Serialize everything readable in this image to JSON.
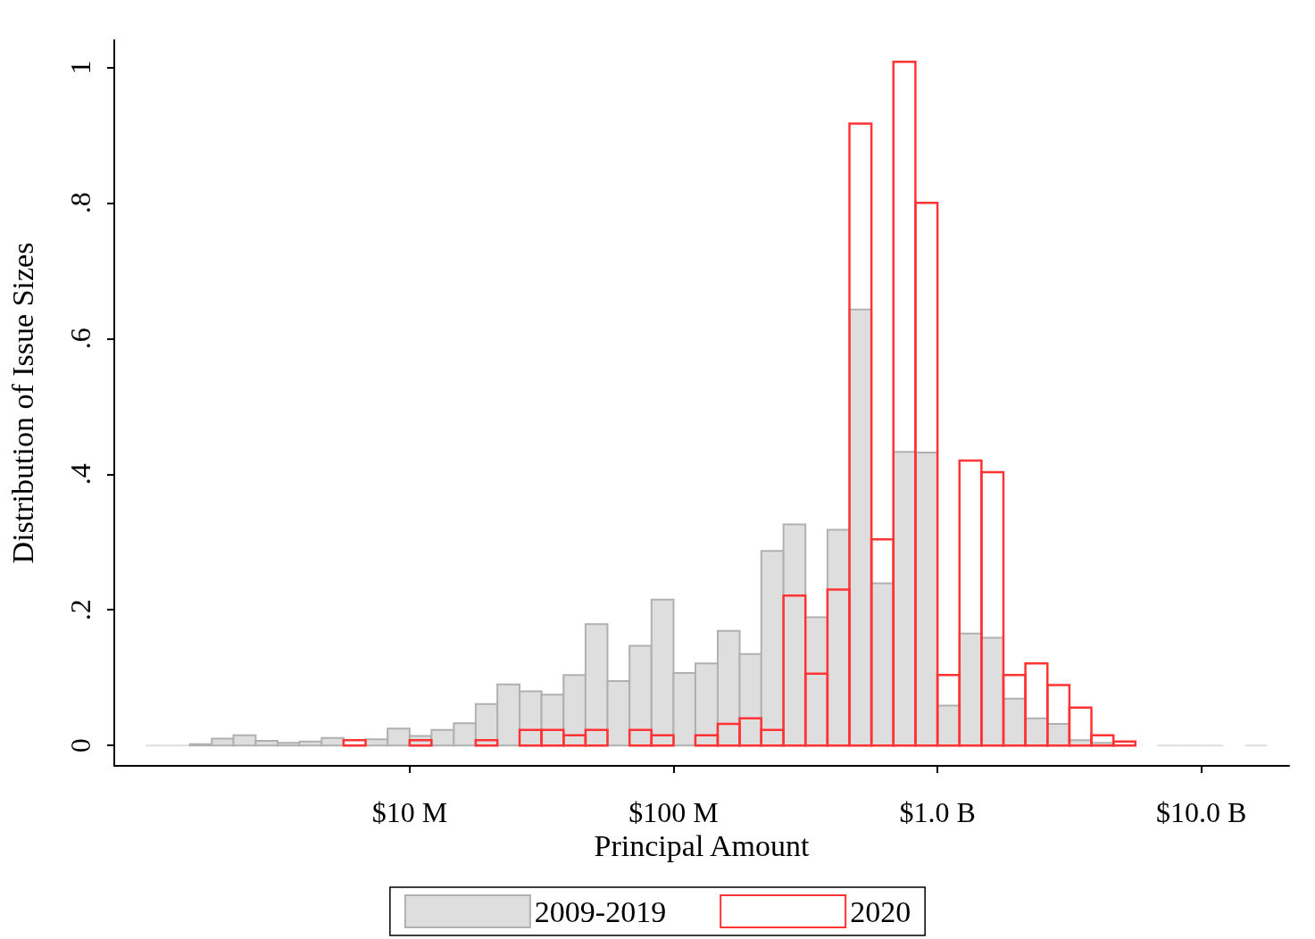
{
  "chart_data": {
    "type": "histogram",
    "xlabel": "Principal Amount",
    "ylabel": "Distribution of Issue Sizes",
    "log": "x",
    "bins": [
      1000000,
      1210000,
      1470000,
      1780000,
      2150000,
      2610000,
      3160000,
      3830000,
      4640000,
      5620000,
      6810000,
      8250000,
      10000000,
      12100000,
      14700000,
      17800000,
      21500000,
      26100000,
      31600000,
      38300000,
      46400000,
      56200000,
      68100000,
      82500000,
      100000000,
      121000000,
      147000000,
      178000000,
      215000000,
      261000000,
      316000000,
      383000000,
      464000000,
      562000000,
      681000000,
      825000000,
      1000000000,
      1212000000,
      1468000000,
      1778000000,
      2154000000,
      2610000000,
      3162000000,
      3831000000,
      4642000000,
      5623000000,
      6813000000,
      8254000000,
      10000000000,
      12115000000,
      14678000000,
      17783000000
    ],
    "xlim": [
      760000,
      21500000000
    ],
    "xticks": [
      {
        "value": 10000000,
        "label": "$10 M"
      },
      {
        "value": 100000000,
        "label": "$100 M"
      },
      {
        "value": 1000000000,
        "label": "$1.0 B"
      },
      {
        "value": 10000000000,
        "label": "$10.0 B"
      }
    ],
    "ylim": [
      -0.03,
      1.04
    ],
    "yticks": [
      {
        "value": 0,
        "label": "0"
      },
      {
        "value": 0.2,
        "label": ".2"
      },
      {
        "value": 0.4,
        "label": ".4"
      },
      {
        "value": 0.6,
        "label": ".6"
      },
      {
        "value": 0.8,
        "label": ".8"
      },
      {
        "value": 1,
        "label": "1"
      }
    ],
    "legend": "bottom",
    "grid": false,
    "series": [
      {
        "name": "2009-2019",
        "color": "#dedede",
        "values": [
          0,
          0,
          0.002,
          0.01,
          0.015,
          0.007,
          0.004,
          0.006,
          0.011,
          0,
          0.009,
          0.025,
          0.014,
          0.023,
          0.033,
          0.061,
          0.09,
          0.08,
          0.075,
          0.104,
          0.179,
          0.095,
          0.147,
          0.215,
          0.107,
          0.121,
          0.169,
          0.135,
          0.287,
          0.326,
          0.189,
          0.318,
          0.643,
          0.239,
          0.433,
          0.432,
          0.059,
          0.165,
          0.159,
          0.069,
          0.04,
          0.032,
          0.008,
          0.004,
          0,
          null,
          0,
          0,
          0,
          null,
          0
        ]
      },
      {
        "name": "2020",
        "color": "#ff3333",
        "values": [
          null,
          null,
          null,
          null,
          null,
          null,
          null,
          null,
          null,
          0.008,
          null,
          null,
          0.008,
          null,
          null,
          0.008,
          null,
          0.023,
          0.023,
          0.015,
          0.023,
          null,
          0.023,
          0.015,
          null,
          0.015,
          0.032,
          0.04,
          0.023,
          0.221,
          0.106,
          0.23,
          0.917,
          0.304,
          1.008,
          0.8,
          0.104,
          0.42,
          0.403,
          0.104,
          0.121,
          0.089,
          0.056,
          0.015,
          0.006,
          null,
          null,
          null,
          null,
          null,
          null
        ]
      }
    ]
  }
}
